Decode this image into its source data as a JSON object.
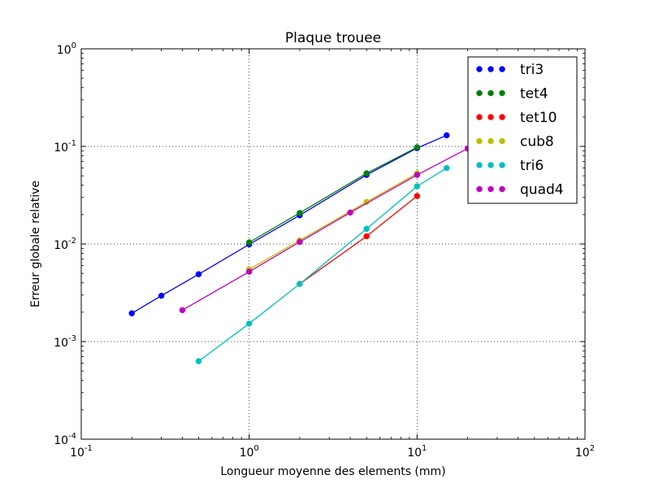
{
  "chart_data": {
    "type": "line",
    "title": "Plaque trouee",
    "xlabel": "Longueur moyenne des elements (mm)",
    "ylabel": "Erreur globale relative",
    "xscale": "log",
    "yscale": "log",
    "xlim": [
      0.1,
      100
    ],
    "ylim": [
      0.0001,
      1
    ],
    "grid": true,
    "legend_position": "top-right",
    "x_ticks": [
      {
        "value": 0.1,
        "base": "10",
        "exp": "-1"
      },
      {
        "value": 1,
        "base": "10",
        "exp": "0"
      },
      {
        "value": 10,
        "base": "10",
        "exp": "1"
      },
      {
        "value": 100,
        "base": "10",
        "exp": "2"
      }
    ],
    "y_ticks": [
      {
        "value": 0.0001,
        "base": "10",
        "exp": "-4"
      },
      {
        "value": 0.001,
        "base": "10",
        "exp": "-3"
      },
      {
        "value": 0.01,
        "base": "10",
        "exp": "-2"
      },
      {
        "value": 0.1,
        "base": "10",
        "exp": "-1"
      },
      {
        "value": 1,
        "base": "10",
        "exp": "0"
      }
    ],
    "series": [
      {
        "name": "tri3",
        "color": "#0000ff",
        "x": [
          0.2,
          0.3,
          0.5,
          1,
          2,
          5,
          10,
          15
        ],
        "y": [
          0.00195,
          0.00295,
          0.0049,
          0.0099,
          0.0197,
          0.051,
          0.096,
          0.13
        ]
      },
      {
        "name": "tet4",
        "color": "#008000",
        "x": [
          1,
          2,
          5,
          10
        ],
        "y": [
          0.0104,
          0.0208,
          0.053,
          0.098
        ]
      },
      {
        "name": "tet10",
        "color": "#ff0000",
        "x": [
          2,
          5,
          10
        ],
        "y": [
          0.0039,
          0.012,
          0.031
        ]
      },
      {
        "name": "cub8",
        "color": "#bfbf00",
        "x": [
          1,
          2,
          5,
          10
        ],
        "y": [
          0.0055,
          0.0109,
          0.027,
          0.053
        ]
      },
      {
        "name": "tri6",
        "color": "#00bfbf",
        "x": [
          0.5,
          1,
          2,
          5,
          10,
          15
        ],
        "y": [
          0.00063,
          0.00153,
          0.0039,
          0.0143,
          0.039,
          0.06
        ]
      },
      {
        "name": "quad4",
        "color": "#bf00bf",
        "x": [
          0.4,
          1,
          2,
          4,
          10,
          20
        ],
        "y": [
          0.0021,
          0.0052,
          0.0105,
          0.021,
          0.051,
          0.095
        ]
      }
    ]
  }
}
